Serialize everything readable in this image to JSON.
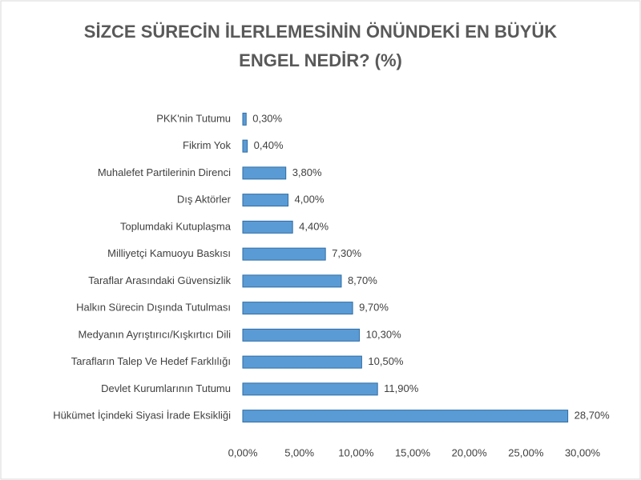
{
  "chart_data": {
    "type": "barh",
    "title": "SİZCE SÜRECİN İLERLEMESİNİN ÖNÜNDEKİ EN BÜYÜK ENGEL NEDİR? (%)",
    "categories": [
      "PKK'nin Tutumu",
      "Fikrim Yok",
      "Muhalefet Partilerinin Direnci",
      "Dış Aktörler",
      "Toplumdaki Kutuplaşma",
      "Milliyetçi Kamuoyu Baskısı",
      "Taraflar Arasındaki Güvensizlik",
      "Halkın Sürecin Dışında Tutulması",
      "Medyanın Ayrıştırıcı/Kışkırtıcı Dili",
      "Tarafların Talep Ve Hedef Farklılığı",
      "Devlet Kurumlarının Tutumu",
      "Hükümet İçindeki Siyasi İrade Eksikliği"
    ],
    "values": [
      0.3,
      0.4,
      3.8,
      4.0,
      4.4,
      7.3,
      8.7,
      9.7,
      10.3,
      10.5,
      11.9,
      28.7
    ],
    "value_labels": [
      "0,30%",
      "0,40%",
      "3,80%",
      "4,00%",
      "4,40%",
      "7,30%",
      "8,70%",
      "9,70%",
      "10,30%",
      "10,50%",
      "11,90%",
      "28,70%"
    ],
    "color": "#5b9bd5",
    "xlim": [
      0,
      30
    ],
    "xticks": [
      {
        "value": 0,
        "label": "0,00%"
      },
      {
        "value": 5,
        "label": "5,00%"
      },
      {
        "value": 10,
        "label": "10,00%"
      },
      {
        "value": 15,
        "label": "15,00%"
      },
      {
        "value": 20,
        "label": "20,00%"
      },
      {
        "value": 25,
        "label": "25,00%"
      },
      {
        "value": 30,
        "label": "30,00%"
      }
    ],
    "grid": false
  }
}
